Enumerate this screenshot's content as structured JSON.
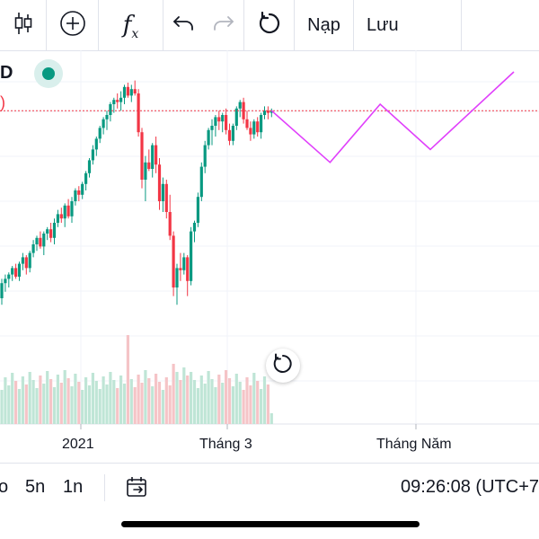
{
  "toolbar": {
    "function_label": "f",
    "function_sub": "x",
    "reload_label": "Nạp",
    "save_label": "Lưu"
  },
  "symbol": {
    "name_fragment": "D",
    "change_fragment": ")"
  },
  "time_axis": {
    "labels": [
      "2021",
      "Tháng 3",
      "Tháng Năm"
    ]
  },
  "bottom": {
    "timeframes": [
      "o",
      "5n",
      "1n"
    ],
    "clock": "09:26:08 (UTC+7"
  },
  "colors": {
    "up": "#089981",
    "down": "#f23645",
    "up_volume": "#bfe5d6",
    "down_volume": "#f5c4c7",
    "projection": "#e040fb",
    "price_line": "#f23645",
    "grid": "#f0f3fa"
  },
  "chart_data": {
    "type": "candlestick",
    "candles": [
      [
        225,
        234,
        222,
        232
      ],
      [
        232,
        236,
        228,
        234
      ],
      [
        234,
        237,
        230,
        236
      ],
      [
        236,
        240,
        233,
        239
      ],
      [
        239,
        241,
        234,
        235
      ],
      [
        235,
        242,
        233,
        241
      ],
      [
        241,
        246,
        238,
        244
      ],
      [
        244,
        245,
        236,
        239
      ],
      [
        239,
        247,
        237,
        246
      ],
      [
        246,
        252,
        244,
        250
      ],
      [
        250,
        254,
        247,
        253
      ],
      [
        253,
        256,
        248,
        249
      ],
      [
        249,
        256,
        245,
        255
      ],
      [
        255,
        258,
        252,
        257
      ],
      [
        257,
        260,
        251,
        253
      ],
      [
        253,
        262,
        250,
        260
      ],
      [
        260,
        266,
        258,
        264
      ],
      [
        264,
        267,
        260,
        262
      ],
      [
        262,
        269,
        258,
        268
      ],
      [
        268,
        271,
        262,
        263
      ],
      [
        263,
        272,
        260,
        270
      ],
      [
        270,
        276,
        268,
        275
      ],
      [
        275,
        277,
        270,
        273
      ],
      [
        273,
        279,
        271,
        278
      ],
      [
        278,
        284,
        275,
        283
      ],
      [
        283,
        290,
        281,
        289
      ],
      [
        289,
        296,
        287,
        294
      ],
      [
        294,
        300,
        291,
        299
      ],
      [
        299,
        305,
        297,
        304
      ],
      [
        304,
        309,
        301,
        308
      ],
      [
        308,
        312,
        303,
        310
      ],
      [
        310,
        316,
        307,
        315
      ],
      [
        315,
        318,
        311,
        317
      ],
      [
        317,
        320,
        313,
        316
      ],
      [
        316,
        321,
        312,
        318
      ],
      [
        318,
        324,
        315,
        323
      ],
      [
        323,
        325,
        318,
        319
      ],
      [
        319,
        324,
        316,
        322
      ],
      [
        322,
        326,
        319,
        320
      ],
      [
        320,
        322,
        300,
        302
      ],
      [
        302,
        304,
        276,
        280
      ],
      [
        280,
        291,
        270,
        288
      ],
      [
        288,
        294,
        284,
        285
      ],
      [
        285,
        297,
        281,
        296
      ],
      [
        296,
        300,
        283,
        287
      ],
      [
        287,
        290,
        266,
        270
      ],
      [
        270,
        281,
        265,
        278
      ],
      [
        278,
        280,
        262,
        265
      ],
      [
        265,
        273,
        252,
        254
      ],
      [
        254,
        256,
        226,
        230
      ],
      [
        230,
        241,
        222,
        239
      ],
      [
        239,
        246,
        233,
        238
      ],
      [
        238,
        246,
        236,
        244
      ],
      [
        244,
        245,
        226,
        233
      ],
      [
        233,
        258,
        231,
        256
      ],
      [
        256,
        261,
        251,
        260
      ],
      [
        260,
        274,
        258,
        272
      ],
      [
        272,
        288,
        270,
        286
      ],
      [
        286,
        298,
        283,
        296
      ],
      [
        296,
        304,
        294,
        303
      ],
      [
        303,
        308,
        296,
        305
      ],
      [
        305,
        310,
        300,
        309
      ],
      [
        309,
        312,
        303,
        307
      ],
      [
        307,
        311,
        302,
        310
      ],
      [
        310,
        313,
        301,
        303
      ],
      [
        303,
        306,
        296,
        298
      ],
      [
        298,
        306,
        296,
        305
      ],
      [
        305,
        314,
        303,
        313
      ],
      [
        313,
        317,
        309,
        316
      ],
      [
        316,
        318,
        306,
        308
      ],
      [
        308,
        312,
        303,
        304
      ],
      [
        304,
        307,
        298,
        301
      ],
      [
        301,
        308,
        299,
        307
      ],
      [
        307,
        309,
        300,
        302
      ],
      [
        302,
        311,
        299,
        310
      ],
      [
        310,
        314,
        308,
        312
      ],
      [
        312,
        314,
        308,
        311
      ],
      [
        311,
        313,
        309,
        312
      ]
    ],
    "current_price": 312,
    "projection": [
      [
        312,
        0
      ],
      [
        288,
        7
      ],
      [
        315,
        13
      ],
      [
        294,
        19
      ],
      [
        330,
        29
      ]
    ],
    "ylim": [
      215,
      340
    ],
    "x_labels": [
      "2021",
      "Tháng 3",
      "Tháng Năm"
    ]
  }
}
